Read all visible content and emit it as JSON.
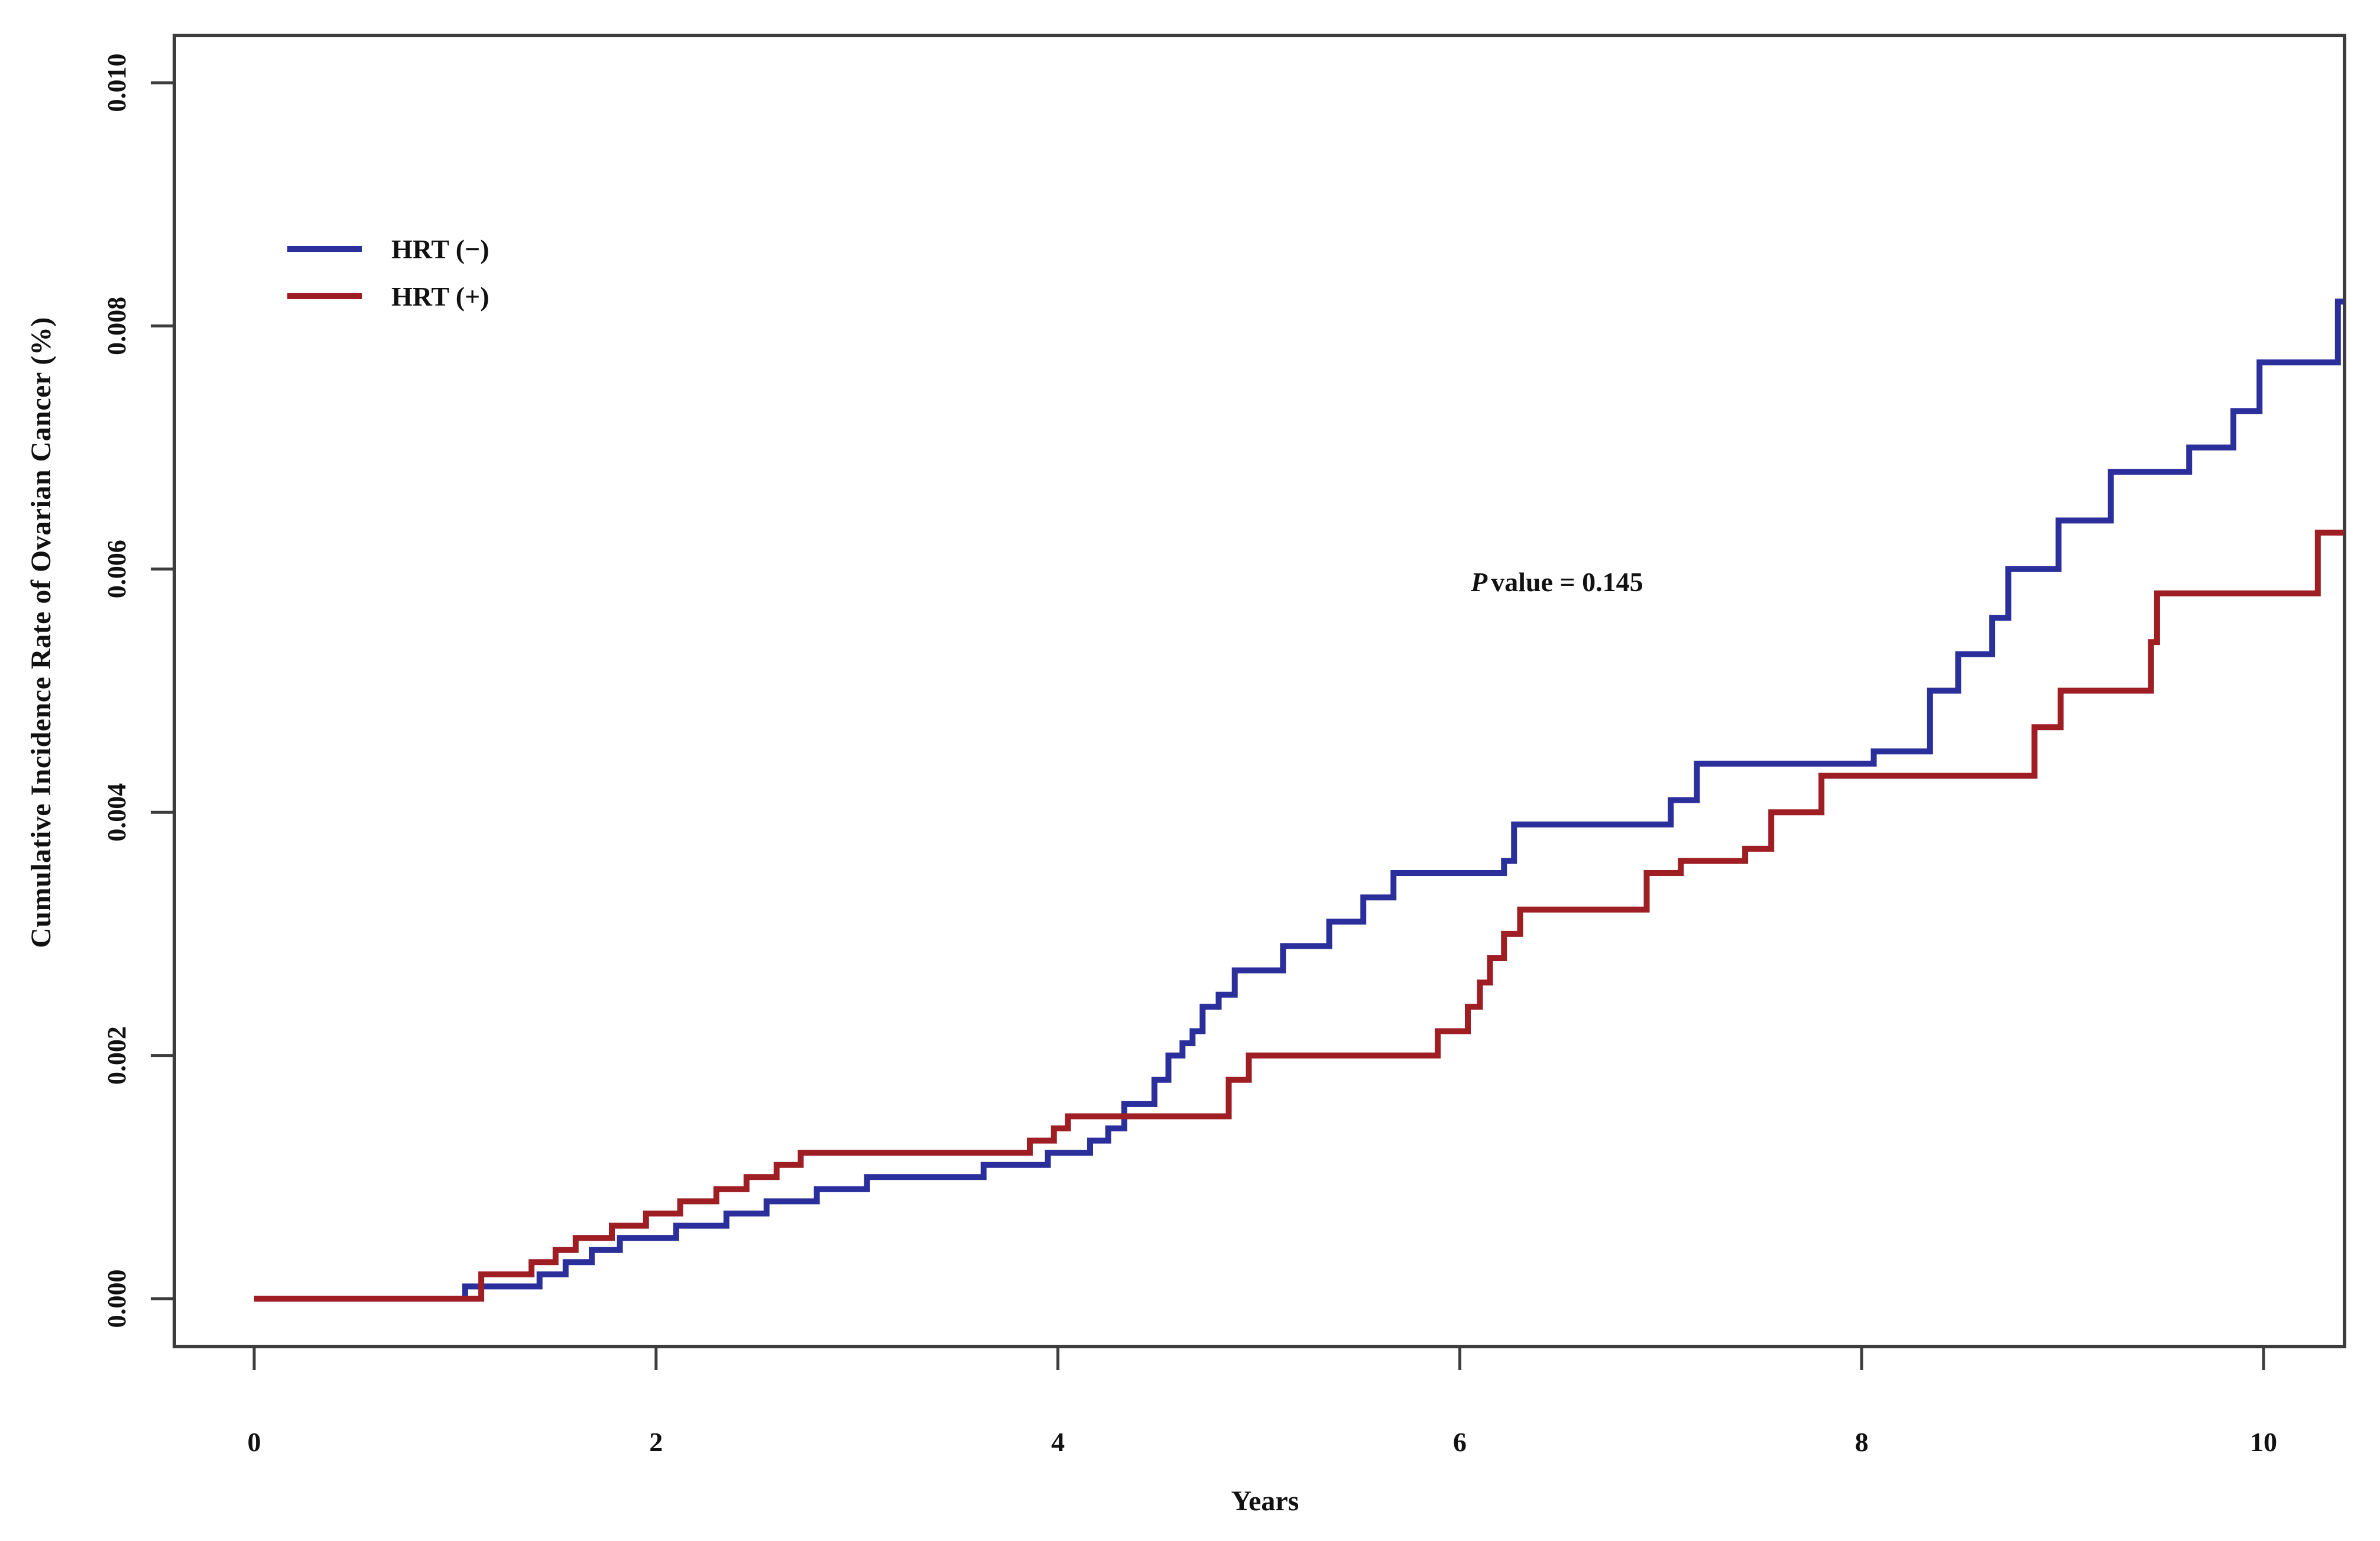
{
  "figure": {
    "background": "#ffffff",
    "axis_color": "#3d3d3d",
    "text_color": "#111111"
  },
  "legend": {
    "items": [
      {
        "label": "HRT (−)",
        "color": "#2a2f9c"
      },
      {
        "label": "HRT (+)",
        "color": "#9e1e24"
      }
    ]
  },
  "annotation": {
    "p_italic": "P",
    "rest": "value = 0.145",
    "full_text": "P value = 0.145"
  },
  "chart_data": {
    "type": "line",
    "subtype": "step-cumulative-incidence",
    "title": "",
    "xlabel": "Years",
    "ylabel": "Cumulative Incidence Rate of Ovarian Cancer (%)",
    "xlim": [
      -0.4,
      10.4
    ],
    "ylim": [
      -0.0004,
      0.0104
    ],
    "grid": false,
    "legend_position": "upper-left-inside",
    "x_ticks": [
      0,
      2,
      4,
      6,
      8,
      10
    ],
    "x_tick_labels": [
      "0",
      "2",
      "4",
      "6",
      "8",
      "10"
    ],
    "y_ticks": [
      0.0,
      0.002,
      0.004,
      0.006,
      0.008,
      0.01
    ],
    "y_tick_labels": [
      "0.000",
      "0.002",
      "0.004",
      "0.006",
      "0.008",
      "0.010"
    ],
    "annotation_text": "P value = 0.145",
    "x_end": 10.4,
    "series": [
      {
        "name": "HRT (−)",
        "color": "#2a2f9c",
        "steps": [
          [
            1.05,
            0.0001
          ],
          [
            1.42,
            0.0002
          ],
          [
            1.55,
            0.0003
          ],
          [
            1.68,
            0.0004
          ],
          [
            1.82,
            0.0005
          ],
          [
            2.1,
            0.0006
          ],
          [
            2.35,
            0.0007
          ],
          [
            2.55,
            0.0008
          ],
          [
            2.8,
            0.0009
          ],
          [
            3.05,
            0.001
          ],
          [
            3.63,
            0.0011
          ],
          [
            3.95,
            0.0012
          ],
          [
            4.16,
            0.0013
          ],
          [
            4.25,
            0.0014
          ],
          [
            4.33,
            0.0016
          ],
          [
            4.48,
            0.0018
          ],
          [
            4.55,
            0.002
          ],
          [
            4.62,
            0.0021
          ],
          [
            4.67,
            0.0022
          ],
          [
            4.72,
            0.0024
          ],
          [
            4.8,
            0.0025
          ],
          [
            4.88,
            0.0027
          ],
          [
            5.12,
            0.0029
          ],
          [
            5.35,
            0.0031
          ],
          [
            5.52,
            0.0033
          ],
          [
            5.67,
            0.0035
          ],
          [
            6.22,
            0.0036
          ],
          [
            6.27,
            0.0039
          ],
          [
            7.05,
            0.0041
          ],
          [
            7.18,
            0.0044
          ],
          [
            8.06,
            0.0045
          ],
          [
            8.34,
            0.005
          ],
          [
            8.48,
            0.0053
          ],
          [
            8.65,
            0.0056
          ],
          [
            8.73,
            0.006
          ],
          [
            8.98,
            0.0064
          ],
          [
            9.24,
            0.0068
          ],
          [
            9.63,
            0.007
          ],
          [
            9.85,
            0.0073
          ],
          [
            9.98,
            0.0077
          ],
          [
            10.37,
            0.0082
          ]
        ]
      },
      {
        "name": "HRT (+)",
        "color": "#9e1e24",
        "steps": [
          [
            1.13,
            0.0002
          ],
          [
            1.38,
            0.0003
          ],
          [
            1.5,
            0.0004
          ],
          [
            1.6,
            0.0005
          ],
          [
            1.78,
            0.0006
          ],
          [
            1.95,
            0.0007
          ],
          [
            2.12,
            0.0008
          ],
          [
            2.3,
            0.0009
          ],
          [
            2.45,
            0.001
          ],
          [
            2.6,
            0.0011
          ],
          [
            2.72,
            0.0012
          ],
          [
            3.86,
            0.0013
          ],
          [
            3.98,
            0.0014
          ],
          [
            4.05,
            0.0015
          ],
          [
            4.85,
            0.0018
          ],
          [
            4.95,
            0.002
          ],
          [
            5.89,
            0.0022
          ],
          [
            6.04,
            0.0024
          ],
          [
            6.1,
            0.0026
          ],
          [
            6.15,
            0.0028
          ],
          [
            6.22,
            0.003
          ],
          [
            6.3,
            0.0032
          ],
          [
            6.93,
            0.0035
          ],
          [
            7.1,
            0.0036
          ],
          [
            7.42,
            0.0037
          ],
          [
            7.55,
            0.004
          ],
          [
            7.8,
            0.0043
          ],
          [
            8.86,
            0.0047
          ],
          [
            8.99,
            0.005
          ],
          [
            9.44,
            0.0054
          ],
          [
            9.47,
            0.0058
          ],
          [
            10.27,
            0.0063
          ]
        ]
      }
    ]
  }
}
